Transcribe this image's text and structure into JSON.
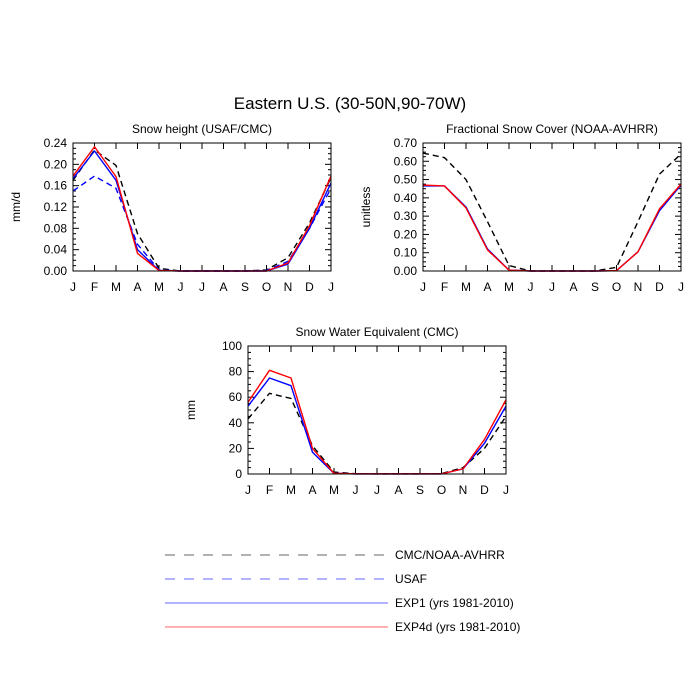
{
  "figure": {
    "title": "Eastern U.S. (30-50N,90-70W)"
  },
  "legend": {
    "placement": "bottom-center",
    "entries": [
      {
        "label": "CMC/NOAA-AVHRR",
        "color": "#000000",
        "dashed": true
      },
      {
        "label": "USAF",
        "color": "#0000ff",
        "dashed": true
      },
      {
        "label": "EXP1 (yrs 1981-2010)",
        "color": "#0000ff",
        "dashed": false
      },
      {
        "label": "EXP4d (yrs 1981-2010)",
        "color": "#ff0000",
        "dashed": false
      }
    ]
  },
  "chart_data": [
    {
      "type": "line",
      "title": "Snow height (USAF/CMC)",
      "ylabel": "mm/d",
      "xlabel": "",
      "categories": [
        "J",
        "F",
        "M",
        "A",
        "M",
        "J",
        "J",
        "A",
        "S",
        "O",
        "N",
        "D",
        "J"
      ],
      "ylim": [
        0,
        0.24
      ],
      "yticks": [
        "0.00",
        "0.04",
        "0.08",
        "0.12",
        "0.16",
        "0.20",
        "0.24"
      ],
      "ytick_values": [
        0,
        0.04,
        0.08,
        0.12,
        0.16,
        0.2,
        0.24
      ],
      "series": [
        {
          "name": "CMC/NOAA-AVHRR",
          "color": "#000000",
          "dashed": true,
          "values": [
            0.17,
            0.227,
            0.198,
            0.07,
            0.005,
            0.0,
            0.0,
            0.0,
            0.0,
            0.002,
            0.025,
            0.09,
            0.175
          ]
        },
        {
          "name": "USAF",
          "color": "#0000ff",
          "dashed": true,
          "values": [
            0.15,
            0.178,
            0.155,
            0.05,
            0.002,
            0.0,
            0.0,
            0.0,
            0.0,
            0.001,
            0.018,
            0.08,
            0.155
          ]
        },
        {
          "name": "EXP1 (yrs 1981-2010)",
          "color": "#0000ff",
          "dashed": false,
          "values": [
            0.173,
            0.225,
            0.17,
            0.04,
            0.001,
            0.0,
            0.0,
            0.0,
            0.0,
            0.0,
            0.013,
            0.08,
            0.165
          ]
        },
        {
          "name": "EXP4d (yrs 1981-2010)",
          "color": "#ff0000",
          "dashed": false,
          "values": [
            0.178,
            0.233,
            0.177,
            0.033,
            0.001,
            0.0,
            0.0,
            0.0,
            0.0,
            0.0,
            0.015,
            0.085,
            0.178
          ]
        }
      ]
    },
    {
      "type": "line",
      "title": "Fractional Snow Cover (NOAA-AVHRR)",
      "ylabel": "unitless",
      "xlabel": "",
      "categories": [
        "J",
        "F",
        "M",
        "A",
        "M",
        "J",
        "J",
        "A",
        "S",
        "O",
        "N",
        "D",
        "J"
      ],
      "ylim": [
        0,
        0.7
      ],
      "yticks": [
        "0.00",
        "0.10",
        "0.20",
        "0.30",
        "0.40",
        "0.50",
        "0.60",
        "0.70"
      ],
      "ytick_values": [
        0,
        0.1,
        0.2,
        0.3,
        0.4,
        0.5,
        0.6,
        0.7
      ],
      "series": [
        {
          "name": "CMC/NOAA-AVHRR",
          "color": "#000000",
          "dashed": true,
          "values": [
            0.645,
            0.62,
            0.5,
            0.27,
            0.03,
            0.0,
            0.0,
            0.0,
            0.0,
            0.02,
            0.27,
            0.53,
            0.64
          ]
        },
        {
          "name": "EXP1 (yrs 1981-2010)",
          "color": "#0000ff",
          "dashed": false,
          "values": [
            0.465,
            0.465,
            0.35,
            0.12,
            0.005,
            0.0,
            0.0,
            0.0,
            0.0,
            0.002,
            0.105,
            0.33,
            0.47
          ]
        },
        {
          "name": "EXP4d (yrs 1981-2010)",
          "color": "#ff0000",
          "dashed": false,
          "values": [
            0.47,
            0.465,
            0.345,
            0.115,
            0.005,
            0.0,
            0.0,
            0.0,
            0.0,
            0.002,
            0.105,
            0.34,
            0.475
          ]
        }
      ]
    },
    {
      "type": "line",
      "title": "Snow Water Equivalent (CMC)",
      "ylabel": "mm",
      "xlabel": "",
      "categories": [
        "J",
        "F",
        "M",
        "A",
        "M",
        "J",
        "J",
        "A",
        "S",
        "O",
        "N",
        "D",
        "J"
      ],
      "ylim": [
        0,
        100
      ],
      "yticks": [
        "0",
        "20",
        "40",
        "60",
        "80",
        "100"
      ],
      "ytick_values": [
        0,
        20,
        40,
        60,
        80,
        100
      ],
      "series": [
        {
          "name": "CMC/NOAA-AVHRR",
          "color": "#000000",
          "dashed": true,
          "values": [
            43,
            63,
            59,
            22,
            1.5,
            0.2,
            0.1,
            0.1,
            0.1,
            0.3,
            5,
            20,
            45
          ]
        },
        {
          "name": "EXP1 (yrs 1981-2010)",
          "color": "#0000ff",
          "dashed": false,
          "values": [
            53,
            75,
            69,
            17,
            0.5,
            0.1,
            0.1,
            0.1,
            0.1,
            0.1,
            4,
            24,
            53
          ]
        },
        {
          "name": "EXP4d (yrs 1981-2010)",
          "color": "#ff0000",
          "dashed": false,
          "values": [
            56,
            81,
            75,
            20,
            0.5,
            0.1,
            0.1,
            0.1,
            0.1,
            0.1,
            4,
            27,
            58
          ]
        }
      ]
    }
  ]
}
